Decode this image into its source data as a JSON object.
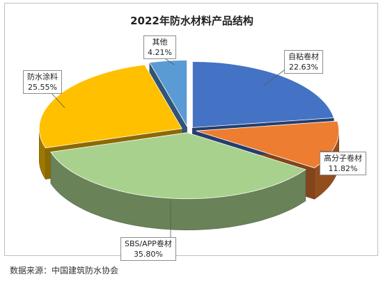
{
  "chart_data": {
    "type": "pie",
    "title": "2022年防水材料产品结构",
    "slices": [
      {
        "name": "自粘卷材",
        "value": 22.63,
        "label": "22.63%",
        "color": "#4472c4"
      },
      {
        "name": "高分子卷材",
        "value": 11.82,
        "label": "11.82%",
        "color": "#ed7d31"
      },
      {
        "name": "SBS/APP卷材",
        "value": 35.8,
        "label": "35.80%",
        "color": "#a9d18e"
      },
      {
        "name": "防水涂料",
        "value": 25.55,
        "label": "25.55%",
        "color": "#ffc000"
      },
      {
        "name": "其他",
        "value": 4.21,
        "label": "4.21%",
        "color": "#5b9bd5"
      }
    ],
    "style": "3d-exploded"
  },
  "source": "数据来源：中国建筑防水协会"
}
